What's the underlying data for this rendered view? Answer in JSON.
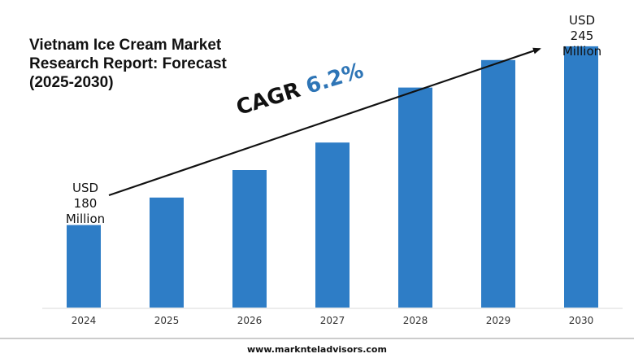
{
  "chart_data": {
    "type": "bar",
    "title": "Vietnam Ice Cream Market Research Report: Forecast (2025-2030)",
    "categories": [
      "2024",
      "2025",
      "2026",
      "2027",
      "2028",
      "2029",
      "2030"
    ],
    "values": [
      180,
      190,
      200,
      210,
      230,
      240,
      245
    ],
    "ylim": [
      150,
      250
    ],
    "bar_color": "#2E7DC6",
    "grid": false,
    "annotations": {
      "cagr_label": "CAGR",
      "cagr_value": "6.2%",
      "cagr_value_color": "#2E75B6",
      "start_label": [
        "USD",
        "180",
        "Million"
      ],
      "end_label": [
        "USD",
        "245",
        "Million"
      ]
    }
  },
  "footer": {
    "url": "www.marknteladvisors.com"
  }
}
